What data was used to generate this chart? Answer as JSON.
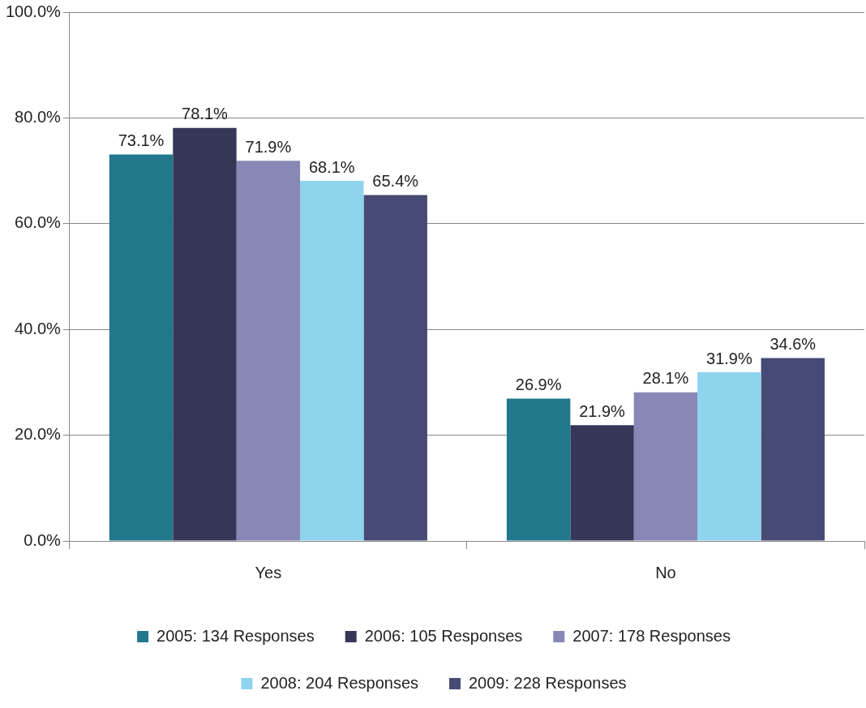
{
  "chart_data": {
    "type": "bar",
    "categories": [
      "Yes",
      "No"
    ],
    "series": [
      {
        "name": "2005: 134 Responses",
        "color": "#21788c",
        "values": [
          73.1,
          26.9
        ],
        "value_labels": [
          "73.1%",
          "26.9%"
        ]
      },
      {
        "name": "2006: 105 Responses",
        "color": "#363758",
        "values": [
          78.1,
          21.9
        ],
        "value_labels": [
          "78.1%",
          "21.9%"
        ]
      },
      {
        "name": "2007: 178 Responses",
        "color": "#8788b5",
        "values": [
          71.9,
          28.1
        ],
        "value_labels": [
          "71.9%",
          "28.1%"
        ]
      },
      {
        "name": "2008: 204 Responses",
        "color": "#8fd4ef",
        "values": [
          68.1,
          31.9
        ],
        "value_labels": [
          "68.1%",
          "31.9%"
        ]
      },
      {
        "name": "2009: 228 Responses",
        "color": "#464a74",
        "values": [
          65.4,
          34.6
        ],
        "value_labels": [
          "65.4%",
          "34.6%"
        ]
      }
    ],
    "ylim": [
      0,
      100
    ],
    "yticks": [
      {
        "value": 0,
        "label": "0.0%"
      },
      {
        "value": 20,
        "label": "20.0%"
      },
      {
        "value": 40,
        "label": "40.0%"
      },
      {
        "value": 60,
        "label": "60.0%"
      },
      {
        "value": 80,
        "label": "80.0%"
      },
      {
        "value": 100,
        "label": "100.0%"
      }
    ],
    "grid": "y",
    "legend": "bottom"
  }
}
